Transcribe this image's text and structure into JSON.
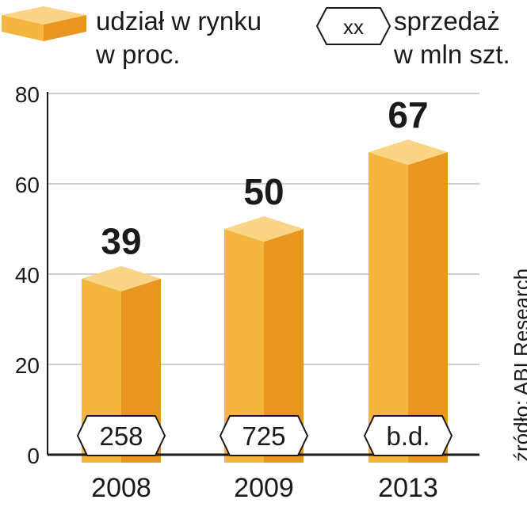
{
  "legend": {
    "share_label_line1": "udział w rynku",
    "share_label_line2": "w proc.",
    "sales_symbol": "xx",
    "sales_label_line1": "sprzedaż",
    "sales_label_line2": "w mln szt."
  },
  "source": "źródło: ABI Research",
  "colors": {
    "bar_front": "#f4b63f",
    "bar_side": "#e8961f",
    "bar_top": "#fad487",
    "grid": "#cfcfcf",
    "text": "#1a1a1a"
  },
  "chart_data": {
    "type": "bar",
    "categories": [
      "2008",
      "2009",
      "2013"
    ],
    "series": [
      {
        "name": "udział w rynku w proc.",
        "values": [
          39,
          50,
          67
        ]
      },
      {
        "name": "sprzedaż w mln szt.",
        "values": [
          "258",
          "725",
          "b.d."
        ]
      }
    ],
    "value_labels": [
      "39",
      "50",
      "67"
    ],
    "sales_labels": [
      "258",
      "725",
      "b.d."
    ],
    "yticks": [
      "0",
      "20",
      "40",
      "60",
      "80"
    ],
    "ylim": [
      0,
      80
    ],
    "grid": true,
    "legend_position": "top"
  }
}
